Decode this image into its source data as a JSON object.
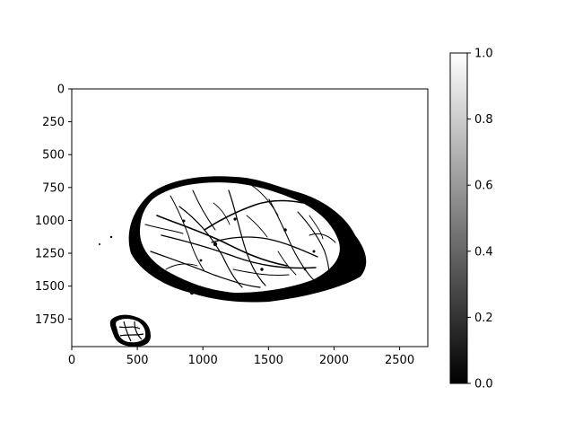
{
  "chart_data": [
    {
      "type": "heatmap",
      "description_kind": "binary image (imshow, gray colormap)",
      "colormap": "gray",
      "value_range": [
        0,
        1
      ],
      "x_ticks": [
        {
          "value": 0,
          "label": "0"
        },
        {
          "value": 500,
          "label": "500"
        },
        {
          "value": 1000,
          "label": "1000"
        },
        {
          "value": 1500,
          "label": "1500"
        },
        {
          "value": 2000,
          "label": "2000"
        },
        {
          "value": 2500,
          "label": "2500"
        }
      ],
      "y_ticks": [
        {
          "value": 0,
          "label": "0"
        },
        {
          "value": 250,
          "label": "250"
        },
        {
          "value": 500,
          "label": "500"
        },
        {
          "value": 750,
          "label": "750"
        },
        {
          "value": 1000,
          "label": "1000"
        },
        {
          "value": 1250,
          "label": "1250"
        },
        {
          "value": 1500,
          "label": "1500"
        },
        {
          "value": 1750,
          "label": "1750"
        }
      ],
      "xlim": [
        0,
        2715
      ],
      "ylim": [
        1960,
        0
      ],
      "y_inverted": true,
      "title": "",
      "xlabel": "",
      "ylabel": ""
    },
    {
      "type": "colorbar",
      "range": [
        0,
        1
      ],
      "ticks": [
        {
          "value": 0.0,
          "label": "0.0"
        },
        {
          "value": 0.2,
          "label": "0.2"
        },
        {
          "value": 0.4,
          "label": "0.4"
        },
        {
          "value": 0.6,
          "label": "0.6"
        },
        {
          "value": 0.8,
          "label": "0.8"
        },
        {
          "value": 1.0,
          "label": "1.0"
        }
      ],
      "colors": {
        "low": "#000000",
        "high": "#ffffff"
      }
    }
  ]
}
